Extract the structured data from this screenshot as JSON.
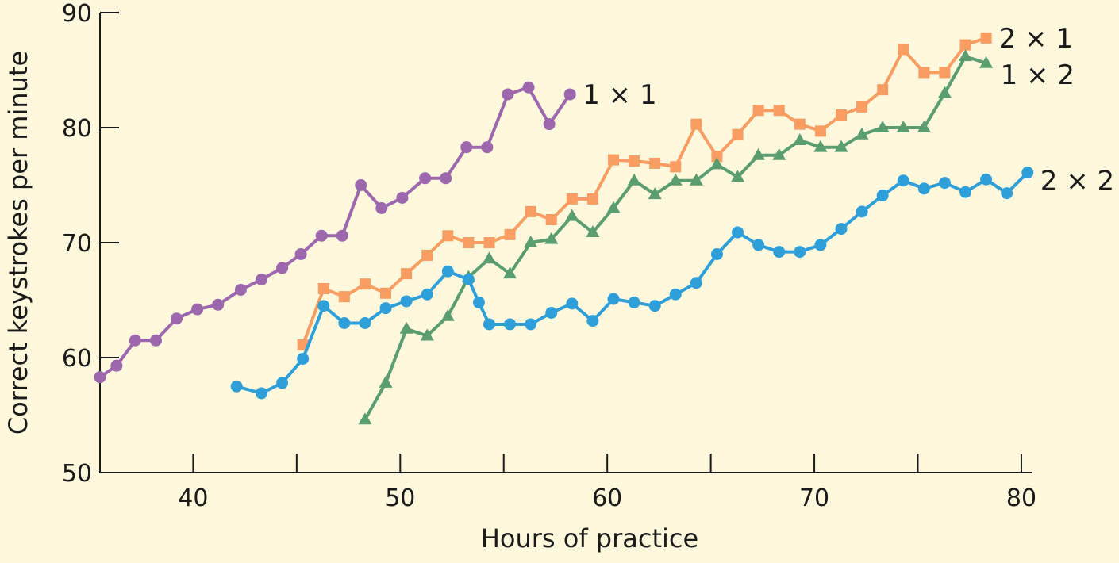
{
  "chart_data": {
    "type": "line",
    "xlabel": "Hours of practice",
    "ylabel": "Correct keystrokes per minute",
    "xlim": [
      35.5,
      80.5
    ],
    "ylim": [
      50,
      90
    ],
    "xticks": [
      40,
      50,
      60,
      70,
      80
    ],
    "xminor_ticks": [
      45,
      55,
      65,
      75
    ],
    "yticks": [
      50,
      60,
      70,
      80,
      90
    ],
    "grid": false,
    "series": [
      {
        "name": "1 × 1",
        "color": "#9c67ad",
        "marker": "circle",
        "x": [
          35.5,
          36.3,
          37.2,
          38.2,
          39.2,
          40.2,
          41.2,
          42.3,
          43.3,
          44.3,
          45.2,
          46.2,
          47.2,
          48.1,
          49.1,
          50.1,
          51.2,
          52.2,
          53.2,
          54.2,
          55.2,
          56.2,
          57.2,
          58.2
        ],
        "y": [
          58.3,
          59.3,
          61.5,
          61.5,
          63.4,
          64.2,
          64.6,
          65.9,
          66.8,
          67.8,
          69.0,
          70.6,
          70.6,
          75.0,
          73.0,
          73.9,
          75.6,
          75.6,
          78.3,
          78.3,
          82.9,
          83.5,
          80.3,
          82.9
        ]
      },
      {
        "name": "2 × 1",
        "color": "#f99d62",
        "marker": "square",
        "x": [
          45.3,
          46.3,
          47.3,
          48.3,
          49.3,
          50.3,
          51.3,
          52.3,
          53.3,
          54.3,
          55.3,
          56.3,
          57.3,
          58.3,
          59.3,
          60.3,
          61.3,
          62.3,
          63.3,
          64.3,
          65.3,
          66.3,
          67.3,
          68.3,
          69.3,
          70.3,
          71.3,
          72.3,
          73.3,
          74.3,
          75.3,
          76.3,
          77.3,
          78.3
        ],
        "y": [
          61.1,
          66.0,
          65.3,
          66.4,
          65.6,
          67.3,
          68.9,
          70.6,
          70.0,
          70.0,
          70.7,
          72.7,
          72.0,
          73.8,
          73.8,
          77.2,
          77.1,
          76.9,
          76.6,
          80.3,
          77.5,
          79.4,
          81.5,
          81.5,
          80.3,
          79.7,
          81.1,
          81.8,
          83.3,
          86.8,
          84.8,
          84.8,
          87.2,
          87.8
        ]
      },
      {
        "name": "1 × 2",
        "color": "#5a9d6f",
        "marker": "triangle",
        "x": [
          48.3,
          49.3,
          50.3,
          51.3,
          52.3,
          53.3,
          54.3,
          55.3,
          56.3,
          57.3,
          58.3,
          59.3,
          60.3,
          61.3,
          62.3,
          63.3,
          64.3,
          65.3,
          66.3,
          67.3,
          68.3,
          69.3,
          70.3,
          71.3,
          72.3,
          73.3,
          74.3,
          75.3,
          76.3,
          77.3,
          78.3
        ],
        "y": [
          54.6,
          57.8,
          62.5,
          61.9,
          63.6,
          67.0,
          68.6,
          67.3,
          70.0,
          70.3,
          72.3,
          70.9,
          73.0,
          75.4,
          74.2,
          75.4,
          75.4,
          76.8,
          75.7,
          77.6,
          77.6,
          78.9,
          78.3,
          78.3,
          79.4,
          80.0,
          80.0,
          80.0,
          83.0,
          86.2,
          85.6
        ]
      },
      {
        "name": "2 × 2",
        "color": "#2e9fd9",
        "marker": "circle",
        "x": [
          42.1,
          43.3,
          44.3,
          45.3,
          46.3,
          47.3,
          48.3,
          49.3,
          50.3,
          51.3,
          52.3,
          53.3,
          53.8,
          54.3,
          55.3,
          56.3,
          57.3,
          58.3,
          59.3,
          60.3,
          61.3,
          62.3,
          63.3,
          64.3,
          65.3,
          66.3,
          67.3,
          68.3,
          69.3,
          70.3,
          71.3,
          72.3,
          73.3,
          74.3,
          75.3,
          76.3,
          77.3,
          78.3,
          79.3,
          80.3
        ],
        "y": [
          57.5,
          56.9,
          57.8,
          59.9,
          64.5,
          63.0,
          63.0,
          64.3,
          64.9,
          65.5,
          67.5,
          66.8,
          64.8,
          62.9,
          62.9,
          62.9,
          63.9,
          64.7,
          63.2,
          65.1,
          64.8,
          64.5,
          65.5,
          66.5,
          69.0,
          70.9,
          69.8,
          69.2,
          69.2,
          69.8,
          71.2,
          72.7,
          74.1,
          75.4,
          74.7,
          75.2,
          74.4,
          75.5,
          74.3,
          76.1
        ]
      }
    ]
  }
}
